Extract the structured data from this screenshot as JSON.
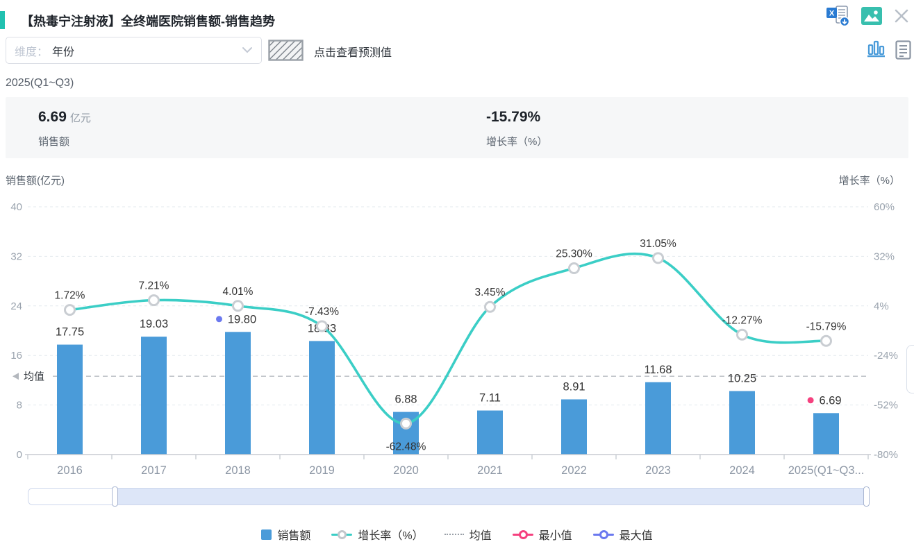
{
  "header": {
    "title": "【热毒宁注射液】全终端医院销售额-销售趋势",
    "icons": [
      "excel-download-icon",
      "image-export-icon",
      "close-icon"
    ]
  },
  "toolbar": {
    "dimension_label": "维度：",
    "dimension_value": "年份",
    "forecast_hint": "点击查看预测值",
    "view_icons": [
      "bar-chart-view-icon",
      "report-view-icon"
    ],
    "active_view": "bar-chart-view-icon"
  },
  "period_label": "2025(Q1~Q3)",
  "summary": {
    "sales_value": "6.69",
    "sales_unit": "亿元",
    "sales_label": "销售额",
    "growth_value": "-15.79%",
    "growth_label": "增长率（%）"
  },
  "chart_data": {
    "type": "bar",
    "categories": [
      "2016",
      "2017",
      "2018",
      "2019",
      "2020",
      "2021",
      "2022",
      "2023",
      "2024",
      "2025(Q1~Q3..."
    ],
    "series": [
      {
        "name": "销售额",
        "type": "bar",
        "axis": "left",
        "values": [
          17.75,
          19.03,
          19.8,
          18.33,
          6.88,
          7.11,
          8.91,
          11.68,
          10.25,
          6.69
        ],
        "labels": [
          "17.75",
          "19.03",
          "19.80",
          "18.33",
          "6.88",
          "7.11",
          "8.91",
          "11.68",
          "10.25",
          "6.69"
        ],
        "color": "#4a9bd9"
      },
      {
        "name": "增长率（%）",
        "type": "line",
        "axis": "right",
        "values": [
          1.72,
          7.21,
          4.01,
          -7.43,
          -62.48,
          3.45,
          25.3,
          31.05,
          -12.27,
          -15.79
        ],
        "labels": [
          "1.72%",
          "7.21%",
          "4.01%",
          "-7.43%",
          "-62.48%",
          "3.45%",
          "25.30%",
          "31.05%",
          "-12.27%",
          "-15.79%"
        ],
        "color": "#3bcec6",
        "marker_ring": "#c9cdd2"
      }
    ],
    "left_axis": {
      "title": "销售额(亿元)",
      "ticks": [
        "40",
        "32",
        "24",
        "16",
        "8",
        "0"
      ],
      "min": 0,
      "max": 40
    },
    "right_axis": {
      "title": "增长率（%）",
      "ticks": [
        "60%",
        "32%",
        "4%",
        "-24%",
        "-52%",
        "-80%"
      ],
      "min": -80,
      "max": 60
    },
    "mean": {
      "label": "均值",
      "value": 12.64
    },
    "max_point": {
      "category_index": 2,
      "label": "19.80",
      "color": "#6b79ef"
    },
    "min_point": {
      "category_index": 9,
      "label": "6.69",
      "color": "#f5417f"
    },
    "growth_label_below": [
      4
    ],
    "grid": true,
    "legend_position": "bottom",
    "legend": [
      {
        "label": "销售额",
        "swatch": "bar",
        "color": "#4a9bd9"
      },
      {
        "label": "增长率（%）",
        "swatch": "line",
        "color": "#3bcec6"
      },
      {
        "label": "均值",
        "swatch": "dotted",
        "color": "#9aa0a8"
      },
      {
        "label": "最小值",
        "swatch": "ring",
        "color": "#f5417f"
      },
      {
        "label": "最大值",
        "swatch": "ring",
        "color": "#6b79ef"
      }
    ]
  },
  "data_zoom": {
    "window_start_pct": 10.3,
    "window_end_pct": 99.8
  },
  "colors": {
    "accent": "#21c1b0",
    "bar": "#4a9bd9",
    "line": "#3bcec6",
    "min_point": "#f5417f",
    "max_point": "#6b79ef",
    "excel_blue": "#2a7bd2",
    "image_teal": "#38bfae",
    "icon_active": "#4a9bd9",
    "icon_gray": "#8a94a2",
    "grid": "#e3e9ed",
    "axis_line": "#c8ccd2",
    "tick_text": "#9aa3ae",
    "x_text": "#8d97a5"
  }
}
